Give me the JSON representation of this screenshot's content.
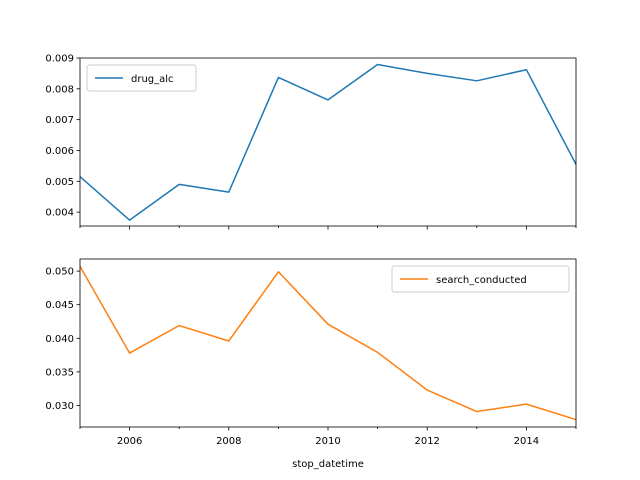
{
  "chart_data": [
    {
      "type": "line",
      "x": [
        2005,
        2006,
        2007,
        2008,
        2009,
        2010,
        2011,
        2012,
        2013,
        2014,
        2015
      ],
      "series": [
        {
          "name": "drug_alc",
          "color": "#1f77b4",
          "values": [
            0.00515,
            0.00374,
            0.0049,
            0.00465,
            0.00837,
            0.00764,
            0.00879,
            0.0085,
            0.00826,
            0.00862,
            0.00555
          ]
        }
      ],
      "xlim": [
        2005,
        2015
      ],
      "ylim": [
        0.00355,
        0.009
      ],
      "yticks": [
        0.004,
        0.005,
        0.006,
        0.007,
        0.008,
        0.009
      ],
      "ytick_labels": [
        "0.004",
        "0.005",
        "0.006",
        "0.007",
        "0.008",
        "0.009"
      ],
      "show_xtick_labels": false,
      "legend": "upper left",
      "grid": false
    },
    {
      "type": "line",
      "x": [
        2005,
        2006,
        2007,
        2008,
        2009,
        2010,
        2011,
        2012,
        2013,
        2014,
        2015
      ],
      "series": [
        {
          "name": "search_conducted",
          "color": "#ff7f0e",
          "values": [
            0.0507,
            0.0378,
            0.0419,
            0.0396,
            0.0499,
            0.0421,
            0.0379,
            0.0323,
            0.0291,
            0.0302,
            0.0279
          ]
        }
      ],
      "xlim": [
        2005,
        2015
      ],
      "ylim": [
        0.0268,
        0.0518
      ],
      "yticks": [
        0.03,
        0.035,
        0.04,
        0.045,
        0.05
      ],
      "ytick_labels": [
        "0.030",
        "0.035",
        "0.040",
        "0.045",
        "0.050"
      ],
      "xticks": [
        2006,
        2008,
        2010,
        2012,
        2014
      ],
      "xtick_labels": [
        "2006",
        "2008",
        "2010",
        "2012",
        "2014"
      ],
      "xlabel": "stop_datetime",
      "legend": "upper right",
      "grid": false
    }
  ]
}
